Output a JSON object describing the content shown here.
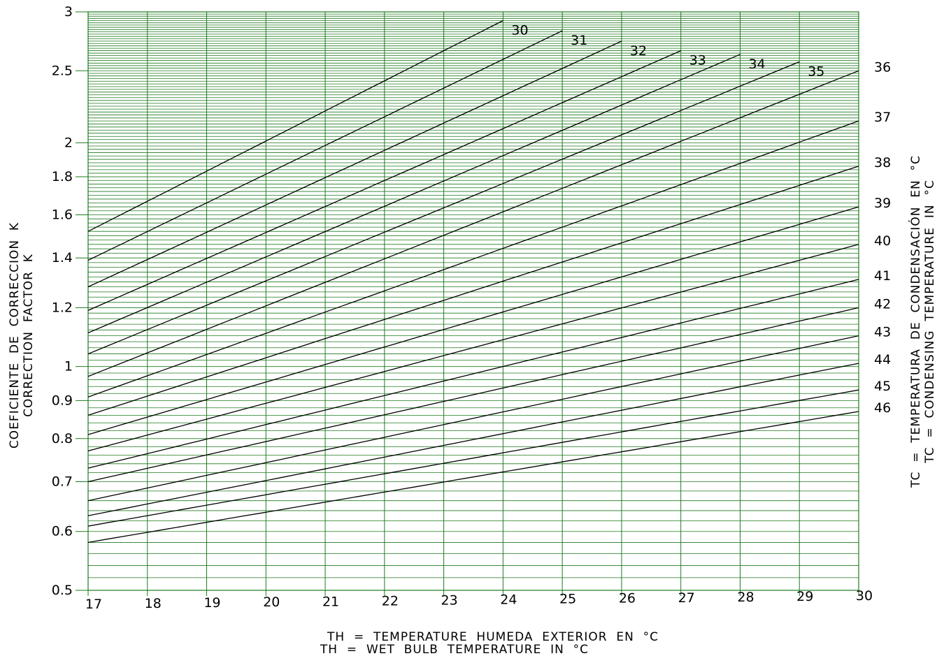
{
  "chart_data": {
    "type": "line",
    "title": "",
    "xlabel_lines": [
      "TH  =  TEMPERATURE  HUMEDA  EXTERIOR  EN  °C",
      "TH  =  WET  BULB  TEMPERATURE  IN  °C"
    ],
    "ylabel_lines": [
      "COEFICIENTE  DE  CORRECCION  K",
      "CORRECTION  FACTOR  K"
    ],
    "right_label_lines": [
      "TC  =  TEMPERATURA  DE  CONDENSACIÓN  EN  °C",
      "TC  =  CONDENSING  TEMPERATURE  IN  °C"
    ],
    "x_ticks": [
      "17",
      "18",
      "19",
      "20",
      "21",
      "22",
      "23",
      "24",
      "25",
      "26",
      "27",
      "28",
      "29",
      "30"
    ],
    "y_ticks": [
      {
        "value": 3,
        "label": "3"
      },
      {
        "value": 2.5,
        "label": "2.5"
      },
      {
        "value": 2,
        "label": "2"
      },
      {
        "value": 1.8,
        "label": "1.8"
      },
      {
        "value": 1.6,
        "label": "1.6"
      },
      {
        "value": 1.4,
        "label": "1.4"
      },
      {
        "value": 1.2,
        "label": "1.2"
      },
      {
        "value": 1,
        "label": "1"
      },
      {
        "value": 0.9,
        "label": "0.9"
      },
      {
        "value": 0.8,
        "label": "0.8"
      },
      {
        "value": 0.7,
        "label": "0.7"
      },
      {
        "value": 0.6,
        "label": "0.6"
      },
      {
        "value": 0.5,
        "label": "0.5"
      }
    ],
    "xlim": [
      17,
      30
    ],
    "ylim": [
      0.5,
      3
    ],
    "y_scale": "log",
    "grid": true,
    "grid_color": "#1e7a1e",
    "line_color": "#000000",
    "series": [
      {
        "name": "30",
        "x": [
          17,
          24
        ],
        "y": [
          1.52,
          2.92
        ]
      },
      {
        "name": "31",
        "x": [
          17,
          25
        ],
        "y": [
          1.39,
          2.83
        ]
      },
      {
        "name": "32",
        "x": [
          17,
          26
        ],
        "y": [
          1.28,
          2.74
        ]
      },
      {
        "name": "33",
        "x": [
          17,
          27
        ],
        "y": [
          1.19,
          2.66
        ]
      },
      {
        "name": "34",
        "x": [
          17,
          28
        ],
        "y": [
          1.11,
          2.63
        ]
      },
      {
        "name": "35",
        "x": [
          17,
          29
        ],
        "y": [
          1.04,
          2.57
        ]
      },
      {
        "name": "36",
        "x": [
          17,
          30
        ],
        "y": [
          0.97,
          2.5
        ]
      },
      {
        "name": "37",
        "x": [
          17,
          30
        ],
        "y": [
          0.91,
          2.14
        ]
      },
      {
        "name": "38",
        "x": [
          17,
          30
        ],
        "y": [
          0.86,
          1.86
        ]
      },
      {
        "name": "39",
        "x": [
          17,
          30
        ],
        "y": [
          0.81,
          1.64
        ]
      },
      {
        "name": "40",
        "x": [
          17,
          30
        ],
        "y": [
          0.77,
          1.46
        ]
      },
      {
        "name": "41",
        "x": [
          17,
          30
        ],
        "y": [
          0.73,
          1.31
        ]
      },
      {
        "name": "42",
        "x": [
          17,
          30
        ],
        "y": [
          0.7,
          1.2
        ]
      },
      {
        "name": "43",
        "x": [
          17,
          30
        ],
        "y": [
          0.66,
          1.1
        ]
      },
      {
        "name": "44",
        "x": [
          17,
          30
        ],
        "y": [
          0.63,
          1.01
        ]
      },
      {
        "name": "45",
        "x": [
          17,
          30
        ],
        "y": [
          0.61,
          0.93
        ]
      },
      {
        "name": "46",
        "x": [
          17,
          30
        ],
        "y": [
          0.58,
          0.87
        ]
      }
    ]
  }
}
